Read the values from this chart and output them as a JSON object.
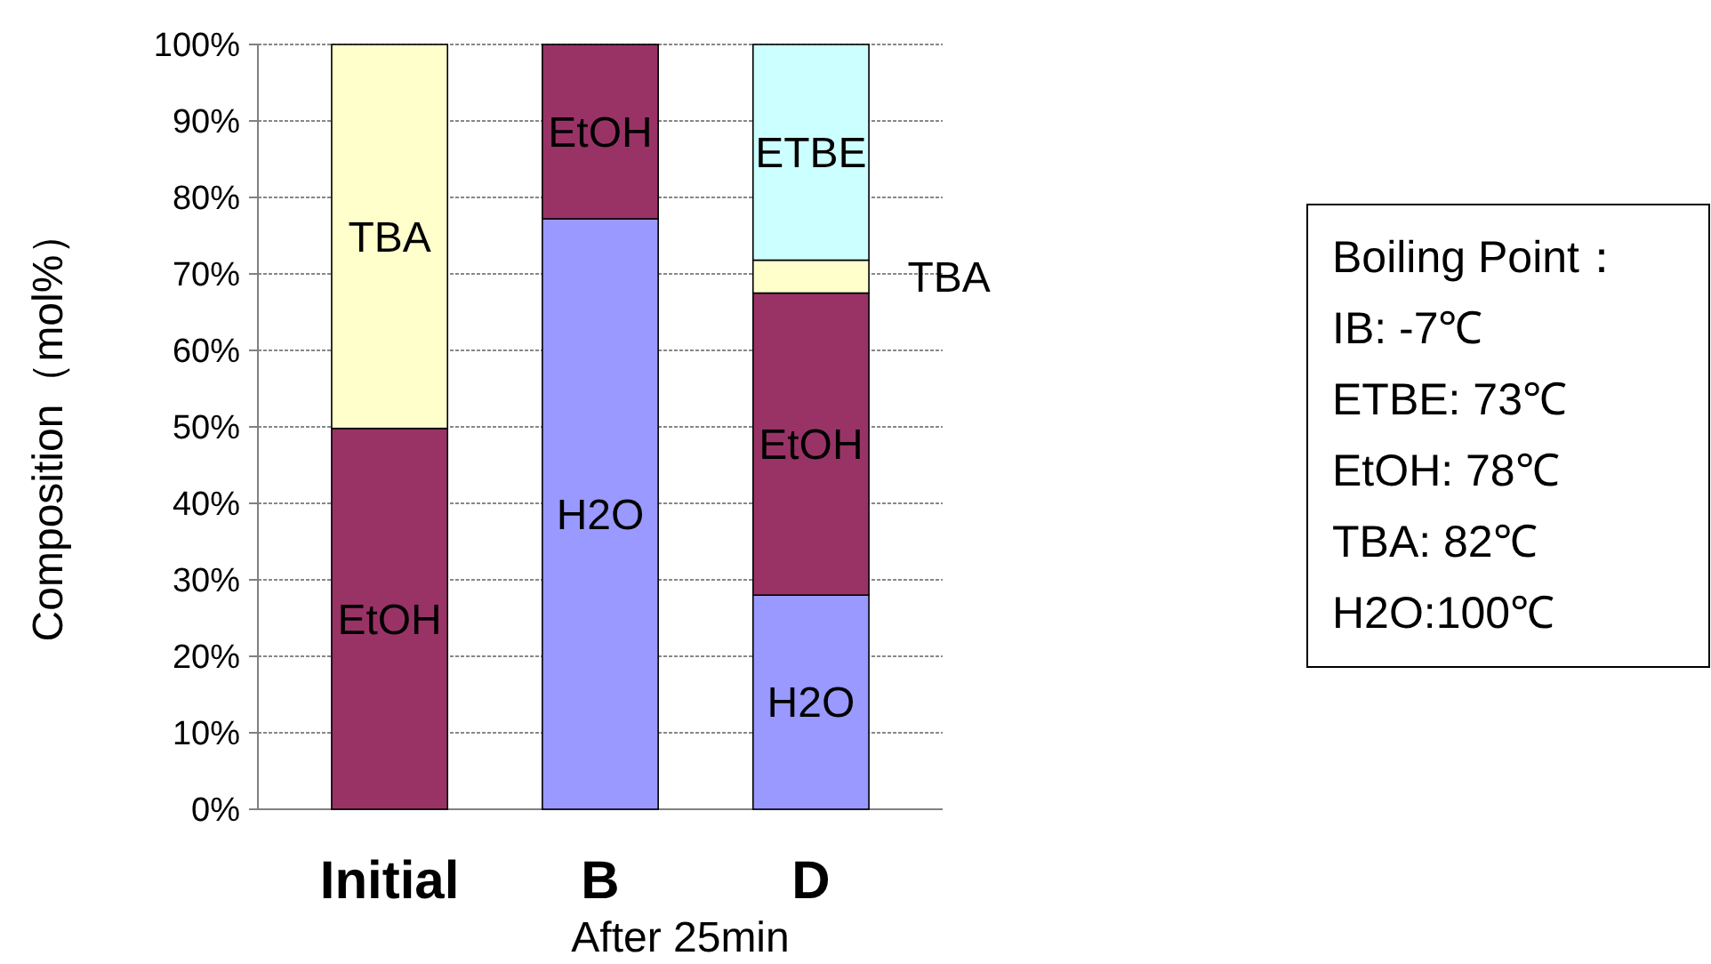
{
  "chart_data": {
    "type": "bar",
    "stacked": true,
    "categories": [
      "Initial",
      "B",
      "D"
    ],
    "series": [
      {
        "name": "H2O",
        "color": "#9999ff",
        "values": [
          0,
          77.2,
          28
        ]
      },
      {
        "name": "EtOH",
        "color": "#993366",
        "values": [
          49.8,
          22.8,
          39.5
        ]
      },
      {
        "name": "TBA",
        "color": "#ffffcc",
        "values": [
          50.2,
          0,
          4.3
        ]
      },
      {
        "name": "ETBE",
        "color": "#ccffff",
        "values": [
          0,
          0,
          28.2
        ]
      }
    ],
    "ylim": [
      0,
      100
    ],
    "yticks": [
      {
        "value": 0,
        "label": "0%"
      },
      {
        "value": 10,
        "label": "10%"
      },
      {
        "value": 20,
        "label": "20%"
      },
      {
        "value": 30,
        "label": "30%"
      },
      {
        "value": 40,
        "label": "40%"
      },
      {
        "value": 50,
        "label": "50%"
      },
      {
        "value": 60,
        "label": "60%"
      },
      {
        "value": 70,
        "label": "70%"
      },
      {
        "value": 80,
        "label": "80%"
      },
      {
        "value": 90,
        "label": "90%"
      },
      {
        "value": 100,
        "label": "100%"
      }
    ],
    "ylabel": "Composition（mol%）",
    "xlabel": "After 25min",
    "grid": "y",
    "annotations": [
      "Boiling Point：",
      "IB: -7℃",
      "ETBE: 73℃",
      "EtOH: 78℃",
      "TBA: 82℃",
      "H2O:100℃"
    ]
  }
}
